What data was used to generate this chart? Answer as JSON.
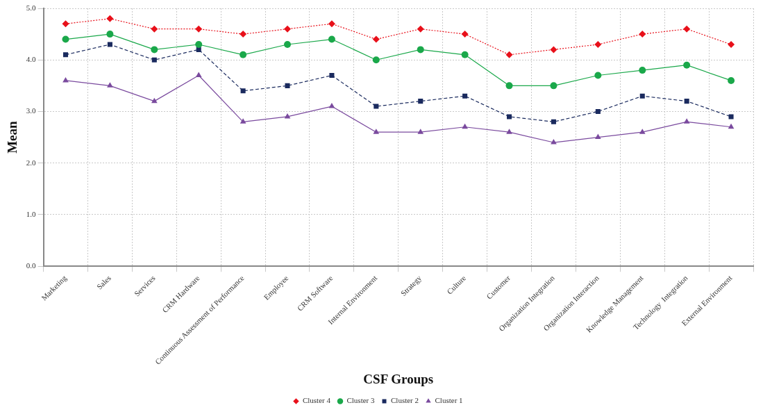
{
  "chart_data": {
    "type": "line",
    "xlabel": "CSF Groups",
    "ylabel": "Mean",
    "categories": [
      "Marketing",
      "Sales",
      "Services",
      "CRM Hardware",
      "Continuous Assessment of Performance",
      "Employee",
      "CRM Software",
      "Internal Environment",
      "Strategy",
      "Culture",
      "Customer",
      "Organization Integration",
      "Organization Interaction",
      "Knowledge Management",
      "Technology  Integration",
      "External Environment"
    ],
    "series": [
      {
        "name": "Cluster 4",
        "color": "#e8101a",
        "marker": "diamond",
        "line_style": "dotted",
        "values": [
          4.7,
          4.8,
          4.6,
          4.6,
          4.5,
          4.6,
          4.7,
          4.4,
          4.6,
          4.5,
          4.1,
          4.2,
          4.3,
          4.5,
          4.6,
          4.3
        ]
      },
      {
        "name": "Cluster 3",
        "color": "#1aa84a",
        "marker": "circle",
        "line_style": "solid",
        "values": [
          4.4,
          4.5,
          4.2,
          4.3,
          4.1,
          4.3,
          4.4,
          4.0,
          4.2,
          4.1,
          3.5,
          3.5,
          3.7,
          3.8,
          3.9,
          3.6
        ]
      },
      {
        "name": "Cluster 2",
        "color": "#1a2a5e",
        "marker": "square",
        "line_style": "dashed",
        "values": [
          4.1,
          4.3,
          4.0,
          4.2,
          3.4,
          3.5,
          3.7,
          3.1,
          3.2,
          3.3,
          2.9,
          2.8,
          3.0,
          3.3,
          3.2,
          2.9
        ]
      },
      {
        "name": "Cluster 1",
        "color": "#7a4a9e",
        "marker": "triangle",
        "line_style": "solid",
        "values": [
          3.6,
          3.5,
          3.2,
          3.7,
          2.8,
          2.9,
          3.1,
          2.6,
          2.6,
          2.7,
          2.6,
          2.4,
          2.5,
          2.6,
          2.8,
          2.7
        ]
      }
    ],
    "ylim": [
      0,
      5
    ],
    "yticks": [
      {
        "value": 0,
        "label": "0.0"
      },
      {
        "value": 1,
        "label": "1.0"
      },
      {
        "value": 2,
        "label": "2.0"
      },
      {
        "value": 3,
        "label": "3.0"
      },
      {
        "value": 4,
        "label": "4.0"
      },
      {
        "value": 5,
        "label": "5.0"
      }
    ],
    "grid": true,
    "legend": "bottom"
  }
}
